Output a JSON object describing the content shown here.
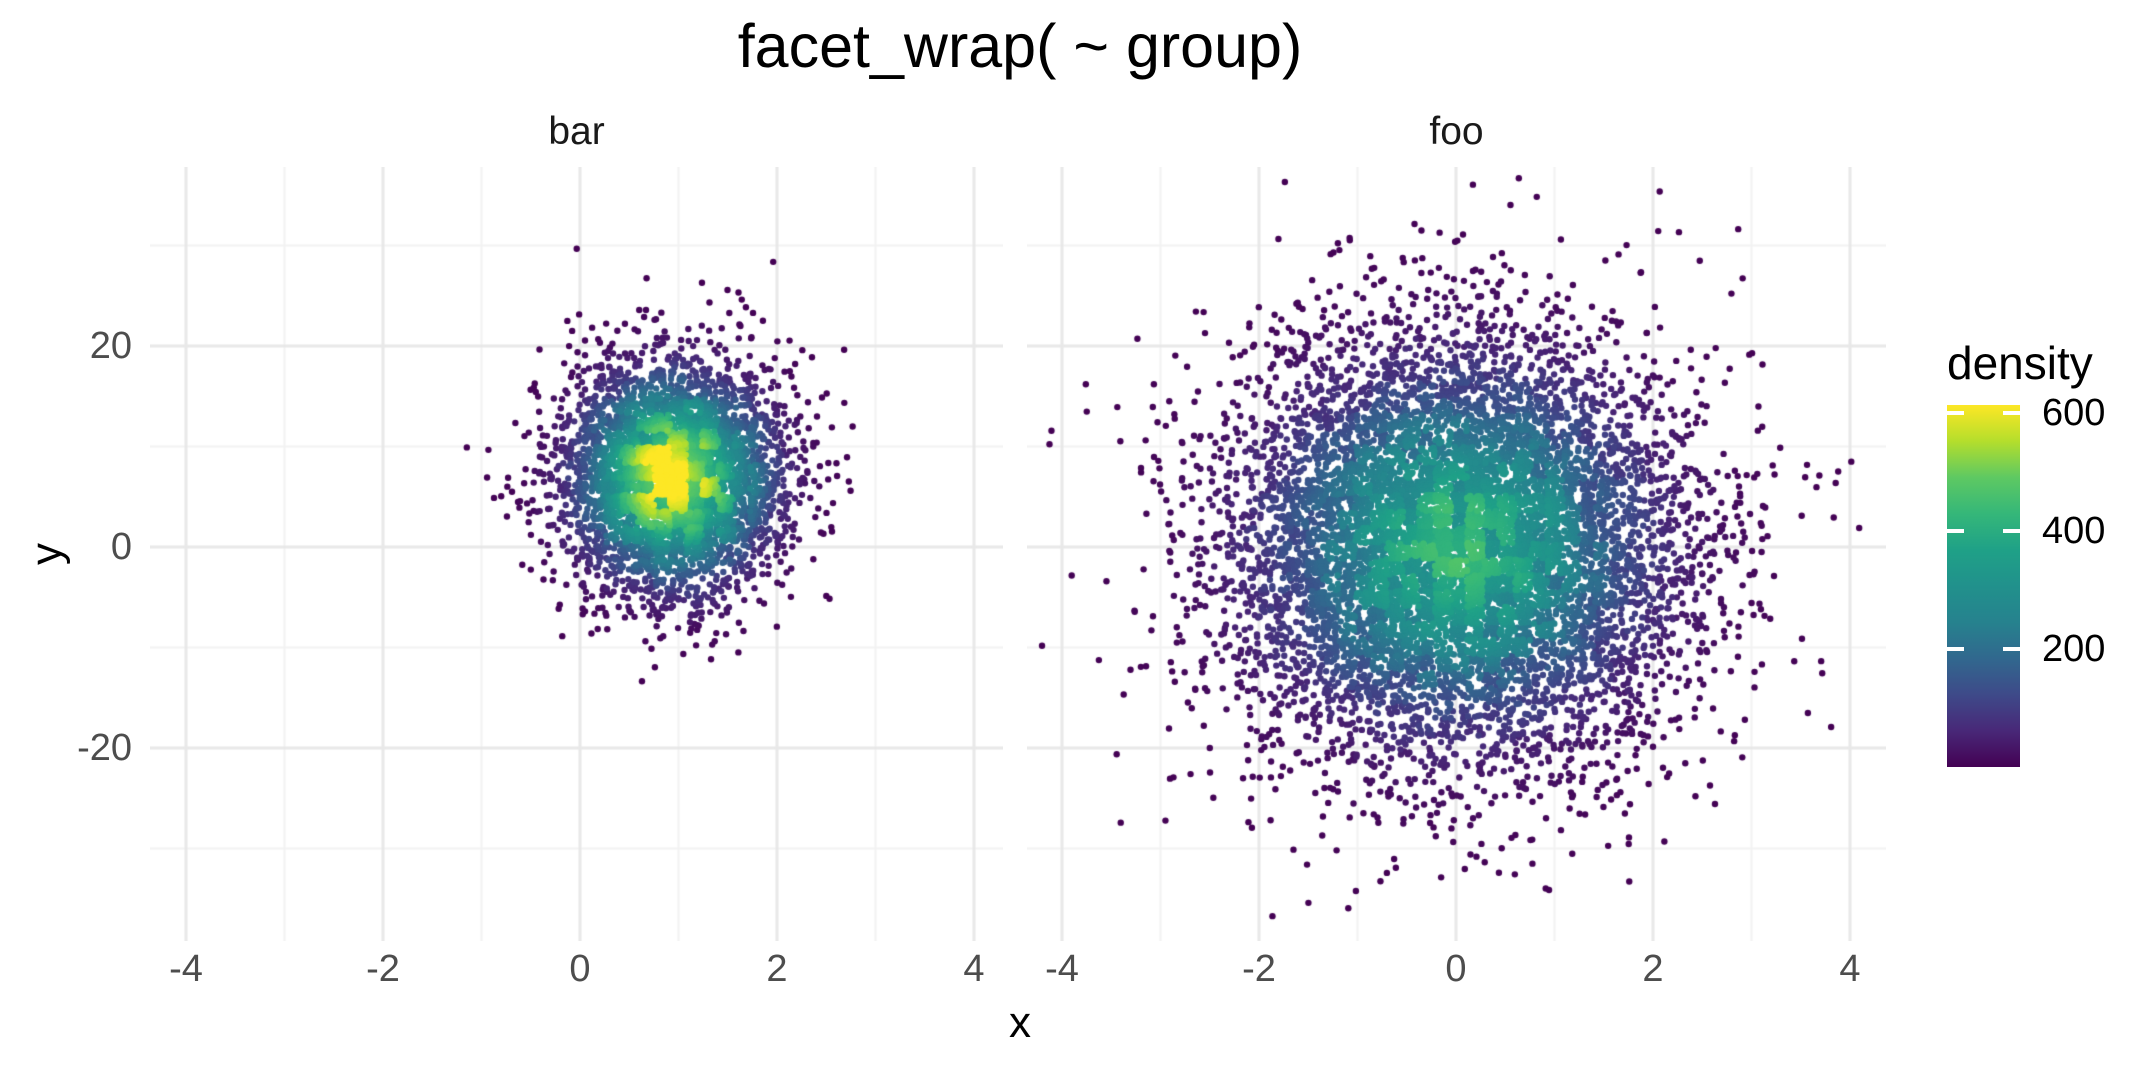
{
  "title": "facet_wrap( ~ group)",
  "axes": {
    "x_title": "x",
    "y_title": "y",
    "x_tick_labels": [
      "-4",
      "-2",
      "0",
      "2",
      "4"
    ],
    "x_tick_values": [
      -4,
      -2,
      0,
      2,
      4
    ],
    "y_tick_labels": [
      "20",
      "0",
      "-20"
    ],
    "y_tick_values": [
      20,
      0,
      -20
    ]
  },
  "legend": {
    "title": "density",
    "tick_labels": [
      "600",
      "400",
      "200"
    ],
    "tick_values": [
      600,
      400,
      200
    ],
    "domain": [
      0,
      613
    ]
  },
  "chart_data": {
    "type": "scatter",
    "title": "facet_wrap( ~ group)",
    "xlabel": "x",
    "ylabel": "y",
    "x_range": [
      -4.37,
      4.33
    ],
    "y_range": [
      -39.2,
      37.8
    ],
    "x_major_gridlines": [
      -4,
      -2,
      0,
      2,
      4
    ],
    "x_minor_gridlines": [
      -3,
      -1,
      1,
      3
    ],
    "y_major_gridlines": [
      20,
      0,
      -20
    ],
    "y_minor_gridlines": [
      30,
      10,
      -10,
      -30
    ],
    "point_radius_px": 3.2,
    "color_variable": "density",
    "color_scale": {
      "name": "viridis",
      "domain": [
        0,
        613
      ],
      "stops": [
        "#440154",
        "#482878",
        "#3E4A89",
        "#31688E",
        "#26828E",
        "#21918C",
        "#1FA187",
        "#35B779",
        "#5EC962",
        "#B4DE2C",
        "#FDE725"
      ]
    },
    "facets": [
      {
        "label": "bar",
        "n_points": 4500,
        "distribution": "bivariate_normal",
        "center_x": 0.95,
        "center_y": 6.8,
        "sd_x": 0.55,
        "sd_y": 5.8,
        "peak_density": 600,
        "seed": 101
      },
      {
        "label": "foo",
        "n_points": 9500,
        "distribution": "bivariate_normal",
        "center_x": 0.0,
        "center_y": 0.0,
        "sd_x": 1.15,
        "sd_y": 10.4,
        "peak_density": 395,
        "seed": 202
      }
    ]
  },
  "colors": {
    "background": "#ffffff",
    "grid_major": "#e8e8e8",
    "grid_minor": "#f2f2f2",
    "tick_label": "#4d4d4d",
    "strip_label": "#1a1a1a",
    "title": "#000000"
  }
}
